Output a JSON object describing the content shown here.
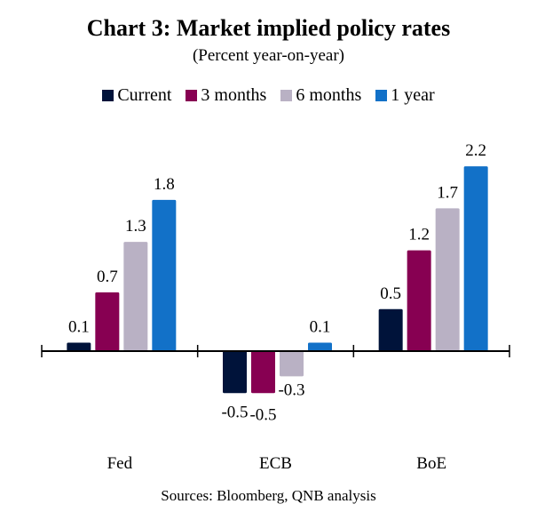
{
  "chart_data": {
    "type": "bar",
    "title": "Chart 3: Market implied policy rates",
    "subtitle": "(Percent year-on-year)",
    "xlabel": "",
    "ylabel": "",
    "categories": [
      "Fed",
      "ECB",
      "BoE"
    ],
    "series": [
      {
        "name": "Current",
        "color": "#00133a",
        "values": [
          0.1,
          -0.5,
          0.5
        ]
      },
      {
        "name": "3 months",
        "color": "#870052",
        "values": [
          0.7,
          -0.5,
          1.2
        ]
      },
      {
        "name": "6 months",
        "color": "#b9b1c4",
        "values": [
          1.3,
          -0.3,
          1.7
        ]
      },
      {
        "name": "1 year",
        "color": "#1271c8",
        "values": [
          1.8,
          0.1,
          2.2
        ]
      }
    ],
    "data_labels": true,
    "grid": false,
    "legend_position": "top-center",
    "source": "Sources: Bloomberg, QNB analysis"
  }
}
